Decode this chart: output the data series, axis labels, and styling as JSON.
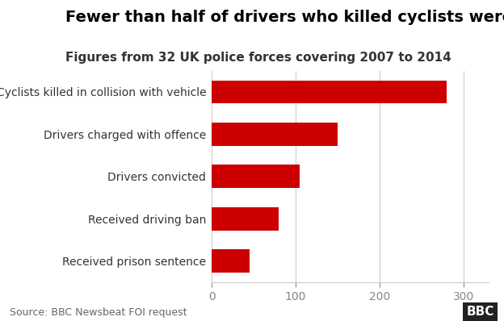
{
  "title": "Fewer than half of drivers who killed cyclists were jailed",
  "subtitle": "Figures from 32 UK police forces covering 2007 to 2014",
  "source": "Source: BBC Newsbeat FOI request",
  "categories": [
    "Cyclists killed in collision with vehicle",
    "Drivers charged with offence",
    "Drivers convicted",
    "Received driving ban",
    "Received prison sentence"
  ],
  "values": [
    280,
    150,
    105,
    80,
    45
  ],
  "bar_color": "#cc0000",
  "background_color": "#ffffff",
  "xlim": [
    0,
    330
  ],
  "xticks": [
    0,
    100,
    200,
    300
  ],
  "title_fontsize": 14,
  "subtitle_fontsize": 11,
  "label_fontsize": 10,
  "tick_fontsize": 10,
  "source_fontsize": 9,
  "bar_height": 0.55
}
